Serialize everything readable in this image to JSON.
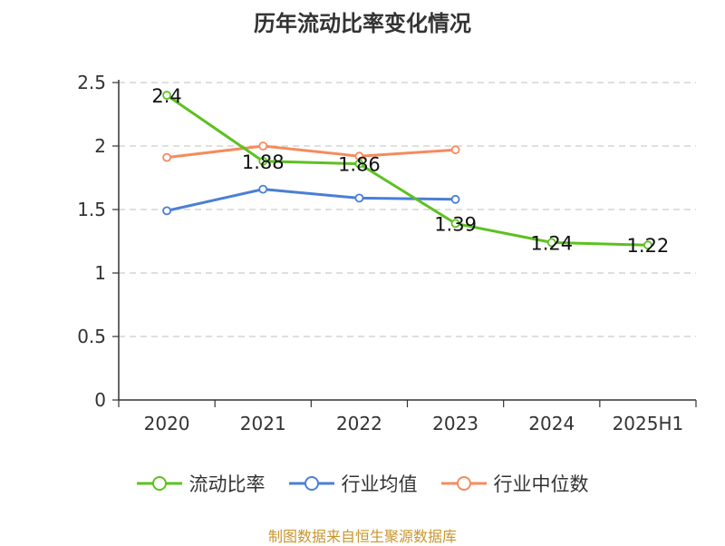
{
  "chart_data": {
    "type": "line",
    "title": "历年流动比率变化情况",
    "categories": [
      "2020",
      "2021",
      "2022",
      "2023",
      "2024",
      "2025H1"
    ],
    "ylim": [
      0,
      2.5
    ],
    "yticks": [
      "0",
      "0.5",
      "1",
      "1.5",
      "2",
      "2.5"
    ],
    "grid": true,
    "legend_position": "bottom",
    "series": [
      {
        "name": "流动比率",
        "color": "#5cc120",
        "values": [
          2.4,
          1.88,
          1.86,
          1.39,
          1.24,
          1.22
        ],
        "labels": [
          "2.4",
          "1.88",
          "1.86",
          "1.39",
          "1.24",
          "1.22"
        ]
      },
      {
        "name": "行业均值",
        "color": "#4a7fd6",
        "values": [
          1.49,
          1.66,
          1.59,
          1.58,
          null,
          null
        ]
      },
      {
        "name": "行业中位数",
        "color": "#f58b5e",
        "values": [
          1.91,
          2.0,
          1.92,
          1.97,
          null,
          null
        ]
      }
    ]
  },
  "source_text": "制图数据来自恒生聚源数据库",
  "source_color": "#c8962e"
}
